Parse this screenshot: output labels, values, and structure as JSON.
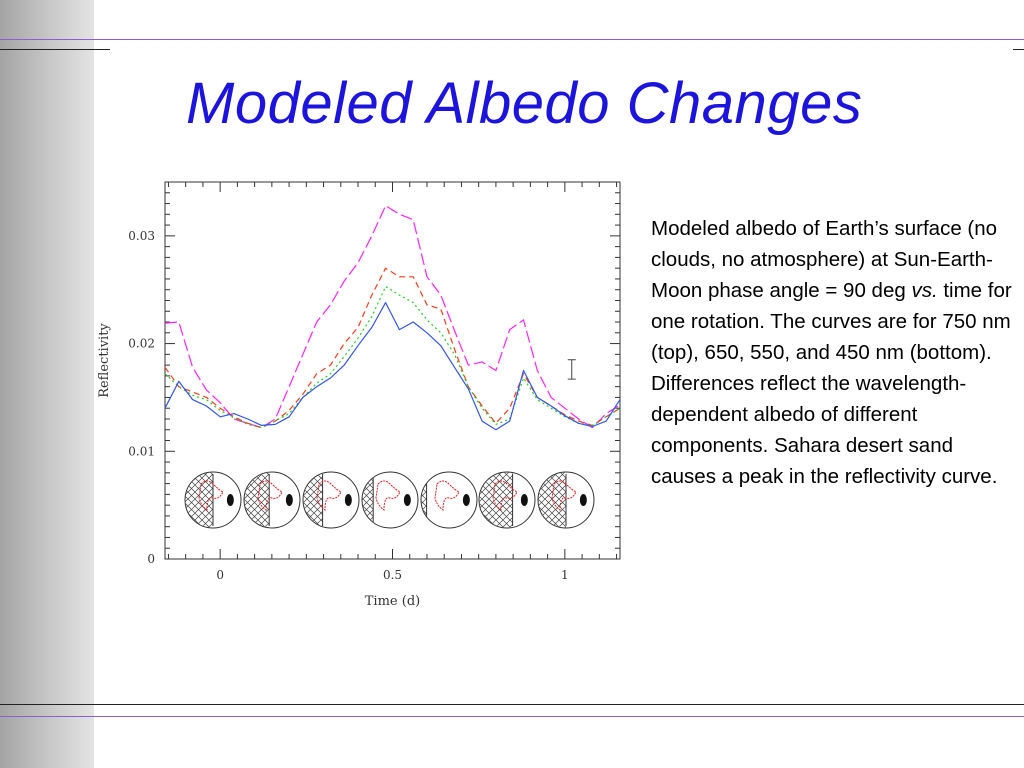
{
  "slide": {
    "title": "Modeled Albedo Changes",
    "description_part1": "Modeled albedo of Earth’s surface (no clouds, no atmosphere) at Sun-Earth-Moon phase angle = 90 deg ",
    "description_vs": "vs.",
    "description_part2": " time for one rotation. The curves are for 750 nm (top), 650, 550, and 450 nm (bottom). Differences reflect the wavelength-dependent albedo of different components. Sahara desert sand causes a peak in the reflectivity curve."
  },
  "colors": {
    "title": "#1c14dc",
    "accent_line": "#8a5fd6",
    "sidebar": "#b8b8b8"
  },
  "chart_data": {
    "type": "line",
    "title": "",
    "xlabel": "Time (d)",
    "ylabel": "Reflectivity",
    "xlim": [
      -0.16,
      1.16
    ],
    "ylim": [
      0,
      0.035
    ],
    "x_ticks": [
      0,
      0.5,
      1
    ],
    "x_tick_labels": [
      "0",
      "0.5",
      "1"
    ],
    "y_ticks": [
      0,
      0.01,
      0.02,
      0.03
    ],
    "y_tick_labels": [
      "0",
      "0.01",
      "0.02",
      "0.03"
    ],
    "grid": false,
    "legend": "none",
    "error_bar": {
      "x": 1.02,
      "y": 0.0176,
      "half_height": 0.0009
    },
    "x": [
      -0.16,
      -0.12,
      -0.08,
      -0.04,
      0.0,
      0.04,
      0.08,
      0.12,
      0.16,
      0.2,
      0.24,
      0.28,
      0.32,
      0.36,
      0.4,
      0.44,
      0.48,
      0.52,
      0.56,
      0.6,
      0.64,
      0.68,
      0.72,
      0.76,
      0.8,
      0.84,
      0.88,
      0.92,
      0.96,
      1.0,
      1.04,
      1.08,
      1.12,
      1.16
    ],
    "series": [
      {
        "name": "750 nm",
        "color": "#ff22ff",
        "dash": "12,4",
        "values": [
          0.0219,
          0.022,
          0.0178,
          0.0157,
          0.0145,
          0.013,
          0.0126,
          0.0122,
          0.013,
          0.016,
          0.019,
          0.022,
          0.0236,
          0.0258,
          0.0275,
          0.03,
          0.0328,
          0.032,
          0.0315,
          0.0262,
          0.0245,
          0.0212,
          0.018,
          0.0183,
          0.0175,
          0.0213,
          0.0222,
          0.0175,
          0.015,
          0.014,
          0.013,
          0.0122,
          0.0135,
          0.0143
        ]
      },
      {
        "name": "650 nm",
        "color": "#ff3a1a",
        "dash": "6,4",
        "values": [
          0.0178,
          0.016,
          0.0155,
          0.015,
          0.014,
          0.0132,
          0.0126,
          0.0122,
          0.0128,
          0.0138,
          0.0153,
          0.0172,
          0.018,
          0.02,
          0.0215,
          0.0245,
          0.027,
          0.0262,
          0.0262,
          0.0236,
          0.0232,
          0.0195,
          0.016,
          0.0142,
          0.0126,
          0.014,
          0.0172,
          0.015,
          0.0142,
          0.0134,
          0.0128,
          0.0124,
          0.0132,
          0.014
        ]
      },
      {
        "name": "550 nm",
        "color": "#22cc22",
        "dash": "2,3",
        "values": [
          0.0172,
          0.016,
          0.0152,
          0.0148,
          0.0138,
          0.0131,
          0.0125,
          0.0122,
          0.0128,
          0.0135,
          0.015,
          0.0163,
          0.0172,
          0.0188,
          0.0205,
          0.0225,
          0.0253,
          0.0245,
          0.0238,
          0.0222,
          0.021,
          0.019,
          0.016,
          0.014,
          0.0125,
          0.013,
          0.0168,
          0.0148,
          0.014,
          0.0132,
          0.0126,
          0.0124,
          0.0132,
          0.014
        ]
      },
      {
        "name": "450 nm",
        "color": "#3355ee",
        "dash": "",
        "values": [
          0.014,
          0.0165,
          0.0148,
          0.0142,
          0.0132,
          0.0135,
          0.013,
          0.0124,
          0.0125,
          0.0132,
          0.015,
          0.016,
          0.0168,
          0.018,
          0.0198,
          0.0215,
          0.0238,
          0.0213,
          0.022,
          0.021,
          0.0198,
          0.0178,
          0.0158,
          0.0128,
          0.012,
          0.0128,
          0.0175,
          0.015,
          0.0142,
          0.0133,
          0.0126,
          0.0123,
          0.0128,
          0.0148
        ]
      }
    ]
  }
}
